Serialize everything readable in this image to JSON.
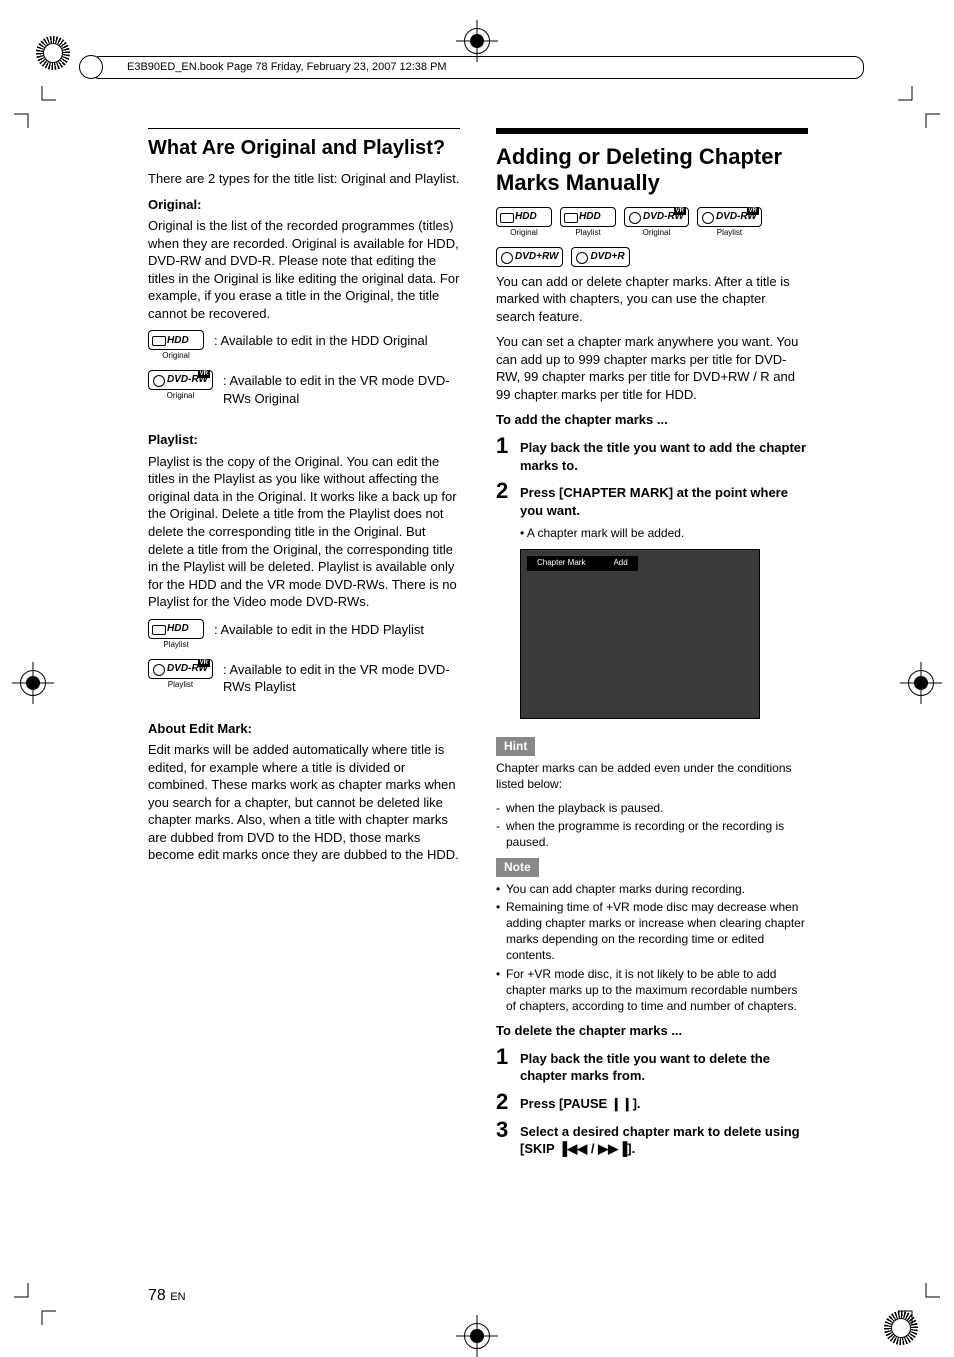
{
  "print_header": "E3B90ED_EN.book  Page 78  Friday, February 23, 2007  12:38 PM",
  "page_number": "78",
  "page_lang": "EN",
  "left": {
    "h2": "What Are Original and Playlist?",
    "intro": "There are 2 types for the title list: Original and Playlist.",
    "orig_h": "Original:",
    "orig_p": "Original is the list of the recorded programmes (titles) when they are recorded. Original is available for HDD, DVD-RW and DVD-R. Please note that editing the titles in the Original is like editing the original data. For example, if you erase a title in the Original, the title cannot be recovered.",
    "d_hdd_o": {
      "label": "HDD",
      "cap": "Original",
      "txt": ": Available to edit in the HDD Original"
    },
    "d_rw_o": {
      "label": "DVD-RW",
      "cap": "Original",
      "txt": ": Available to edit in the VR mode DVD-RWs Original"
    },
    "play_h": "Playlist:",
    "play_p": "Playlist is the copy of the Original. You can edit the titles in the Playlist as you like without affecting the original data in the Original. It works like a back up for the Original. Delete a title from the Playlist does not delete the corresponding title in the Original. But delete a title from the Original, the corresponding title in the Playlist will be deleted. Playlist is available only for the HDD and the VR mode DVD-RWs. There is no Playlist for the Video mode DVD-RWs.",
    "d_hdd_p": {
      "label": "HDD",
      "cap": "Playlist",
      "txt": ": Available to edit in the HDD Playlist"
    },
    "d_rw_p": {
      "label": "DVD-RW",
      "cap": "Playlist",
      "txt": ": Available to edit in the VR mode DVD-RWs Playlist"
    },
    "edit_h": "About Edit Mark:",
    "edit_p": "Edit marks will be added automatically where title is edited, for example where a title is divided or combined. These marks work as chapter marks when you search for a chapter, but cannot be deleted like chapter marks. Also, when a title with chapter marks are dubbed from DVD to the HDD, those marks become edit marks once they are dubbed to the HDD."
  },
  "right": {
    "h2": "Adding or Deleting Chapter Marks Manually",
    "discs": [
      {
        "label": "HDD",
        "cap": "Original",
        "type": "hdd",
        "vr": false
      },
      {
        "label": "HDD",
        "cap": "Playlist",
        "type": "hdd",
        "vr": false
      },
      {
        "label": "DVD-RW",
        "cap": "Original",
        "type": "disc",
        "vr": true
      },
      {
        "label": "DVD-RW",
        "cap": "Playlist",
        "type": "disc",
        "vr": true
      },
      {
        "label": "DVD+RW",
        "cap": "",
        "type": "disc",
        "vr": false
      },
      {
        "label": "DVD+R",
        "cap": "",
        "type": "disc",
        "vr": false
      }
    ],
    "p1": "You can add or delete chapter marks. After a title is marked with chapters, you can use the chapter search feature.",
    "p2": "You can set a chapter mark anywhere you want. You can add up to 999 chapter marks per title for DVD-RW, 99 chapter marks per title for DVD+RW / R and 99 chapter marks per title for HDD.",
    "add_h": "To add the chapter marks ...",
    "add_steps": [
      "Play back the title you want to add the chapter marks to.",
      "Press [CHAPTER MARK] at the point where you want."
    ],
    "add_sub": "• A chapter mark will be added.",
    "screen": {
      "l": "Chapter Mark",
      "r": "Add"
    },
    "hint_label": "Hint",
    "hint_intro": "Chapter marks can be added even under the conditions listed below:",
    "hints": [
      "when the playback is paused.",
      "when the programme is recording or the recording is paused."
    ],
    "note_label": "Note",
    "notes": [
      "You can add chapter marks during recording.",
      "Remaining time of +VR mode disc may decrease when adding chapter marks or increase when clearing chapter marks depending on the recording time or edited contents.",
      "For +VR mode disc, it is not likely to be able to add chapter marks up to the maximum recordable numbers of chapters, according to time and number of chapters."
    ],
    "del_h": "To delete the chapter marks ...",
    "del_steps": [
      "Play back the title you want to delete the chapter marks from.",
      "Press [PAUSE ❙❙].",
      "Select a desired chapter mark to delete using [SKIP ▐◀◀ / ▶▶▐]."
    ]
  }
}
